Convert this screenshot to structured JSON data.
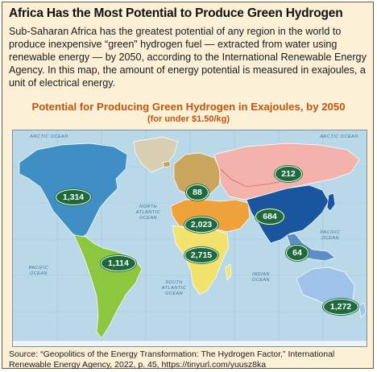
{
  "headline": "Africa Has the Most Potential to Produce Green Hydrogen",
  "intro": "Sub-Saharan Africa has the greatest potential of any region in the world to produce inexpensive “green” hydrogen fuel — extracted from water using renewable energy — by 2050, according to the International Renewable Energy Agency. In this map, the amount of energy potential is measured in exajoules, a unit of electrical energy.",
  "map": {
    "title": "Potential for Producing Green Hydrogen in Exajoules, by 2050",
    "subtitle": "(for under $1.50/kg)",
    "oceans": {
      "arctic_left": "ARCTIC OCEAN",
      "arctic_right": "ARCTIC OCEAN",
      "north_atlantic": "NORTH\nATLANTIC\nOCEAN",
      "south_atlantic": "SOUTH\nATLANTIC\nOCEAN",
      "pacific_left": "PACIFIC\nOCEAN",
      "pacific_right": "PACIFIC\nOCEAN",
      "indian": "INDIAN\nOCEAN"
    },
    "regions": [
      {
        "id": "north-america",
        "value": "1,314",
        "color": "#3f8fc4"
      },
      {
        "id": "latin-america",
        "value": "1,114",
        "color": "#8dc63f"
      },
      {
        "id": "europe",
        "value": "88",
        "color": "#c9a55e"
      },
      {
        "id": "mena",
        "value": "2,023",
        "color": "#f0a23a"
      },
      {
        "id": "sub-saharan-africa",
        "value": "2,715",
        "color": "#f2e36e"
      },
      {
        "id": "russia-central-asia",
        "value": "212",
        "color": "#f3b2ac"
      },
      {
        "id": "south-east-asia-china",
        "value": "684",
        "color": "#1a56a0"
      },
      {
        "id": "southeast-asia",
        "value": "64",
        "color": "#5e8ec9"
      },
      {
        "id": "oceania",
        "value": "1,272",
        "color": "#9fc2e8"
      }
    ]
  },
  "source": "Source: “Geopolitics of the Energy Transformation: The Hydrogen Factor,” International Renewable Energy Agency, 2022, p. 45, https://tinyurl.com/yuusz8ka"
}
